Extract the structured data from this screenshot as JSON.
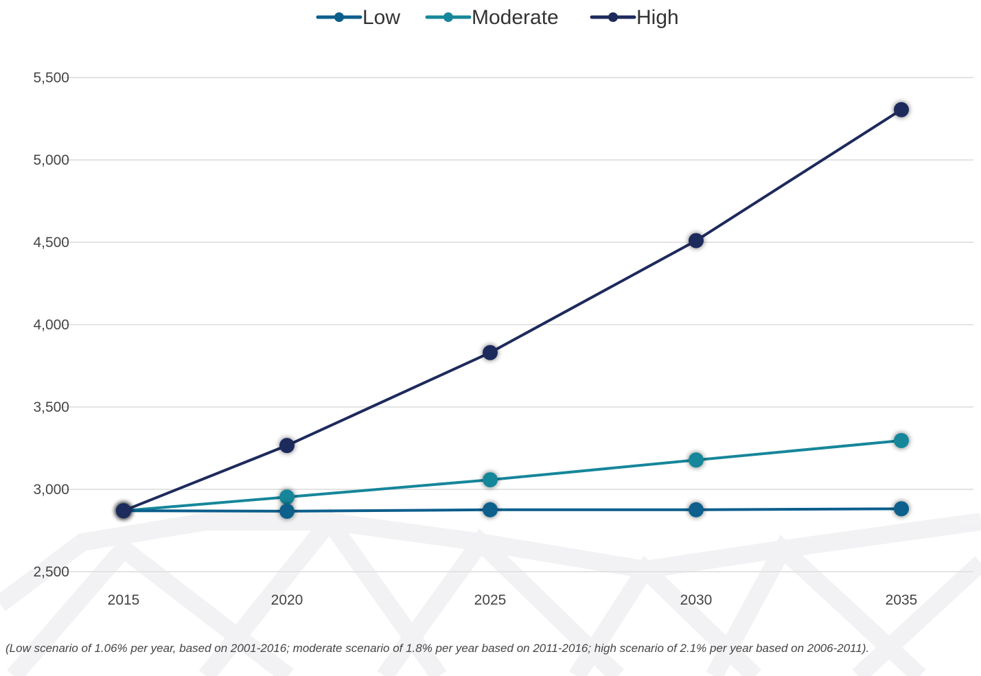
{
  "chart_data": {
    "type": "line",
    "title": "",
    "xlabel": "",
    "ylabel": "",
    "categories": [
      "2015",
      "2020",
      "2025",
      "2030",
      "2035"
    ],
    "series": [
      {
        "name": "Low",
        "color": "#0b5e8c",
        "values": [
          2870,
          2867,
          2876,
          2876,
          2882
        ]
      },
      {
        "name": "Moderate",
        "color": "#16869a",
        "values": [
          2870,
          2953,
          3058,
          3178,
          3296
        ]
      },
      {
        "name": "High",
        "color": "#1e2a5c",
        "values": [
          2870,
          3266,
          3830,
          4510,
          5305
        ]
      }
    ],
    "ylim": [
      2500,
      5500
    ],
    "yticks": [
      2500,
      3000,
      3500,
      4000,
      4500,
      5000,
      5500
    ],
    "ytick_labels": [
      "2,500",
      "3,000",
      "3,500",
      "4,000",
      "4,500",
      "5,000",
      "5,500"
    ],
    "grid": "horizontal",
    "legend": "top-center"
  },
  "footnote": "(Low scenario of 1.06% per year, based on 2001-2016; moderate scenario of 1.8% per year based on 2011-2016; high scenario of 2.1% per year based on 2006-2011)."
}
